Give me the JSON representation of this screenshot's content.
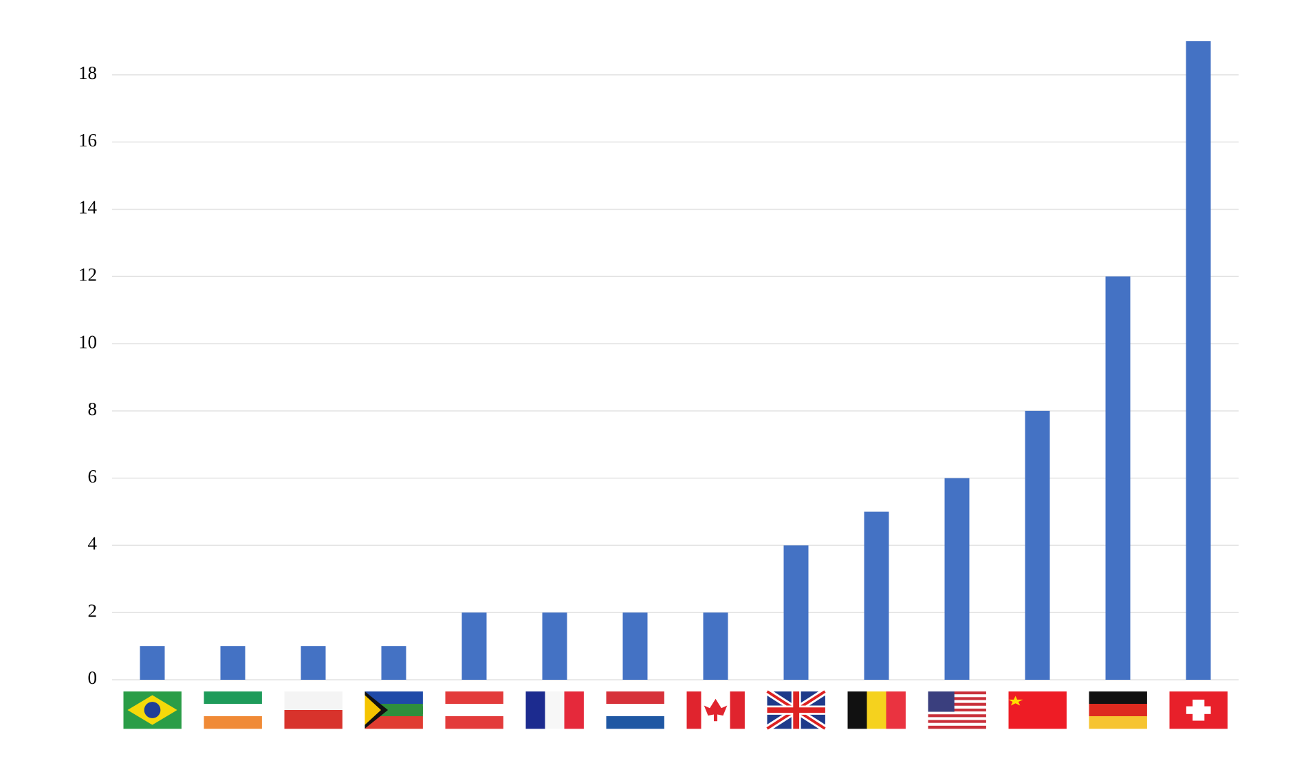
{
  "chart_data": {
    "type": "bar",
    "categories": [
      null,
      null,
      null,
      null,
      null,
      null,
      null,
      null,
      null,
      null,
      null,
      null,
      null,
      null
    ],
    "values": [
      1,
      1,
      1,
      1,
      2,
      2,
      2,
      2,
      4,
      5,
      6,
      8,
      12,
      19
    ],
    "color": "#4472c4",
    "ylim": [
      0,
      19
    ],
    "yticks": [
      0,
      2,
      4,
      6,
      8,
      10,
      12,
      14,
      16,
      18
    ],
    "grid": true
  }
}
